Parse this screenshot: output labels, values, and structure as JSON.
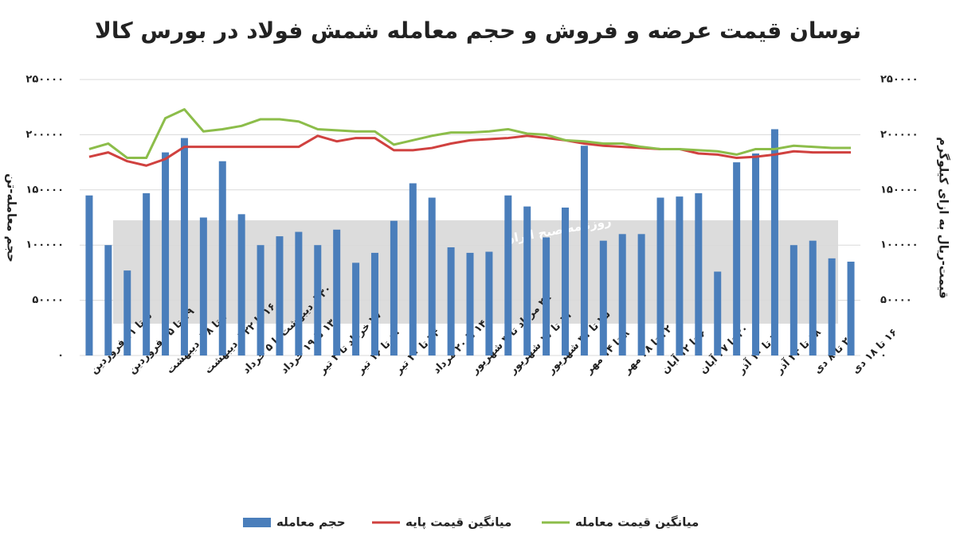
{
  "chart_data": {
    "type": "bar-line",
    "title": "نوسان قیمت عرضه و فروش و حجم معامله شمش فولاد در بورس کالا",
    "ylabel": "حجم معامله-تن",
    "y2label": "قیمت-ریال به ازای کیلوگرم",
    "watermark": "روزنامه صبح ایران",
    "categories": [
      "۵ تا ۱۱ فروردین",
      null,
      "۱۹ تا ۲۵ فروردین",
      null,
      "۲ تا ۸ اردیبهشت",
      null,
      "۱۶ تا ۲۲ اردیبهشت",
      null,
      "۳۰ اردیبهشت تا ۵ خرداد",
      null,
      "۱۳ تا ۱۹ خرداد",
      null,
      "۲۷ خرداد تا ۲ تیر",
      null,
      "۱۰ تا ۱۶ تیر",
      null,
      "۲۴ تا ۳۰ تیر",
      null,
      "۱۴ تا ۲۰ مرداد",
      null,
      "۲۸ مرداد تا ۳ شهریور",
      null,
      "۱۱ تا ۱۷ شهریور",
      null,
      "۲۵ تا ۳۱ شهریور",
      null,
      "۸ تا ۱۴ مهر",
      null,
      "۲۲ تا ۲۸ مهر",
      null,
      "۶ تا ۱۲ آبان",
      null,
      "۲۰ تا ۲۷ آبان",
      null,
      "۴ تا ۱۰ آذر",
      null,
      "۱۸ تا ۲۴ آذر",
      null,
      "۲ تا ۸ دی",
      null,
      "۱۶ تا ۱۸ دی"
    ],
    "series": [
      {
        "name": "حجم معامله",
        "type": "bar",
        "color": "#4a7ebb",
        "axis": "y",
        "values": [
          145000,
          100000,
          77000,
          147000,
          184000,
          197000,
          125000,
          176000,
          128000,
          100000,
          108000,
          112000,
          100000,
          114000,
          84000,
          93000,
          122000,
          156000,
          143000,
          98000,
          93000,
          94000,
          145000,
          135000,
          107000,
          134000,
          190000,
          104000,
          110000,
          110000,
          143000,
          144000,
          147000,
          76000,
          175000,
          183000,
          205000,
          100000,
          104000,
          88000,
          85000
        ]
      },
      {
        "name": "میانگین قیمت پایه",
        "type": "line",
        "color": "#d0413f",
        "axis": "y2",
        "values": [
          180000,
          184000,
          176000,
          172000,
          178000,
          189000,
          189000,
          189000,
          189000,
          189000,
          189000,
          189000,
          199000,
          194000,
          197000,
          197000,
          186000,
          186000,
          188000,
          192000,
          195000,
          196000,
          197000,
          199000,
          197000,
          195000,
          192000,
          190000,
          189000,
          188000,
          187000,
          187000,
          183000,
          182000,
          179000,
          180000,
          182000,
          185000,
          184000,
          184000,
          184000
        ]
      },
      {
        "name": "میانگین قیمت معامله",
        "type": "line",
        "color": "#8cbd4a",
        "axis": "y2",
        "values": [
          187000,
          192000,
          179000,
          179000,
          215000,
          223000,
          203000,
          205000,
          208000,
          214000,
          214000,
          212000,
          205000,
          204000,
          203000,
          203000,
          191000,
          195000,
          199000,
          202000,
          202000,
          203000,
          205000,
          201000,
          200000,
          195000,
          194000,
          192000,
          192000,
          189000,
          187000,
          187000,
          186000,
          185000,
          182000,
          187000,
          187000,
          190000,
          189000,
          188000,
          188000
        ]
      }
    ],
    "ylim": [
      0,
      250000
    ],
    "yticks": [
      {
        "value": 0,
        "label": "۰"
      },
      {
        "value": 50000,
        "label": "۵۰۰۰۰"
      },
      {
        "value": 100000,
        "label": "۱۰۰۰۰۰"
      },
      {
        "value": 150000,
        "label": "۱۵۰۰۰۰"
      },
      {
        "value": 200000,
        "label": "۲۰۰۰۰۰"
      },
      {
        "value": 250000,
        "label": "۲۵۰۰۰۰"
      }
    ],
    "y2lim": [
      0,
      250000
    ],
    "y2ticks": [
      {
        "value": 0,
        "label": "۰"
      },
      {
        "value": 50000,
        "label": "۵۰۰۰۰"
      },
      {
        "value": 100000,
        "label": "۱۰۰۰۰۰"
      },
      {
        "value": 150000,
        "label": "۱۵۰۰۰۰"
      },
      {
        "value": 200000,
        "label": "۲۰۰۰۰۰"
      },
      {
        "value": 250000,
        "label": "۲۵۰۰۰۰"
      }
    ],
    "grid": true
  }
}
